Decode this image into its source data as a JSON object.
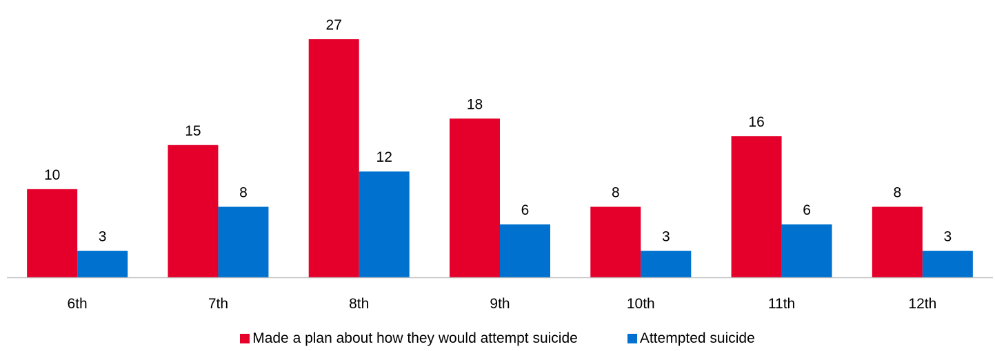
{
  "chart_data": {
    "type": "bar",
    "title": "",
    "xlabel": "",
    "ylabel": "",
    "categories": [
      "6th",
      "7th",
      "8th",
      "9th",
      "10th",
      "11th",
      "12th"
    ],
    "series": [
      {
        "name": "Made a plan about how they would attempt suicide",
        "color": "#e4002b",
        "values": [
          10,
          15,
          27,
          18,
          8,
          16,
          8
        ]
      },
      {
        "name": "Attempted suicide",
        "color": "#0071ce",
        "values": [
          3,
          8,
          12,
          6,
          3,
          6,
          3
        ]
      }
    ],
    "ylim": [
      0,
      27
    ],
    "grid": false,
    "data_labels": true,
    "legend_position": "bottom"
  }
}
